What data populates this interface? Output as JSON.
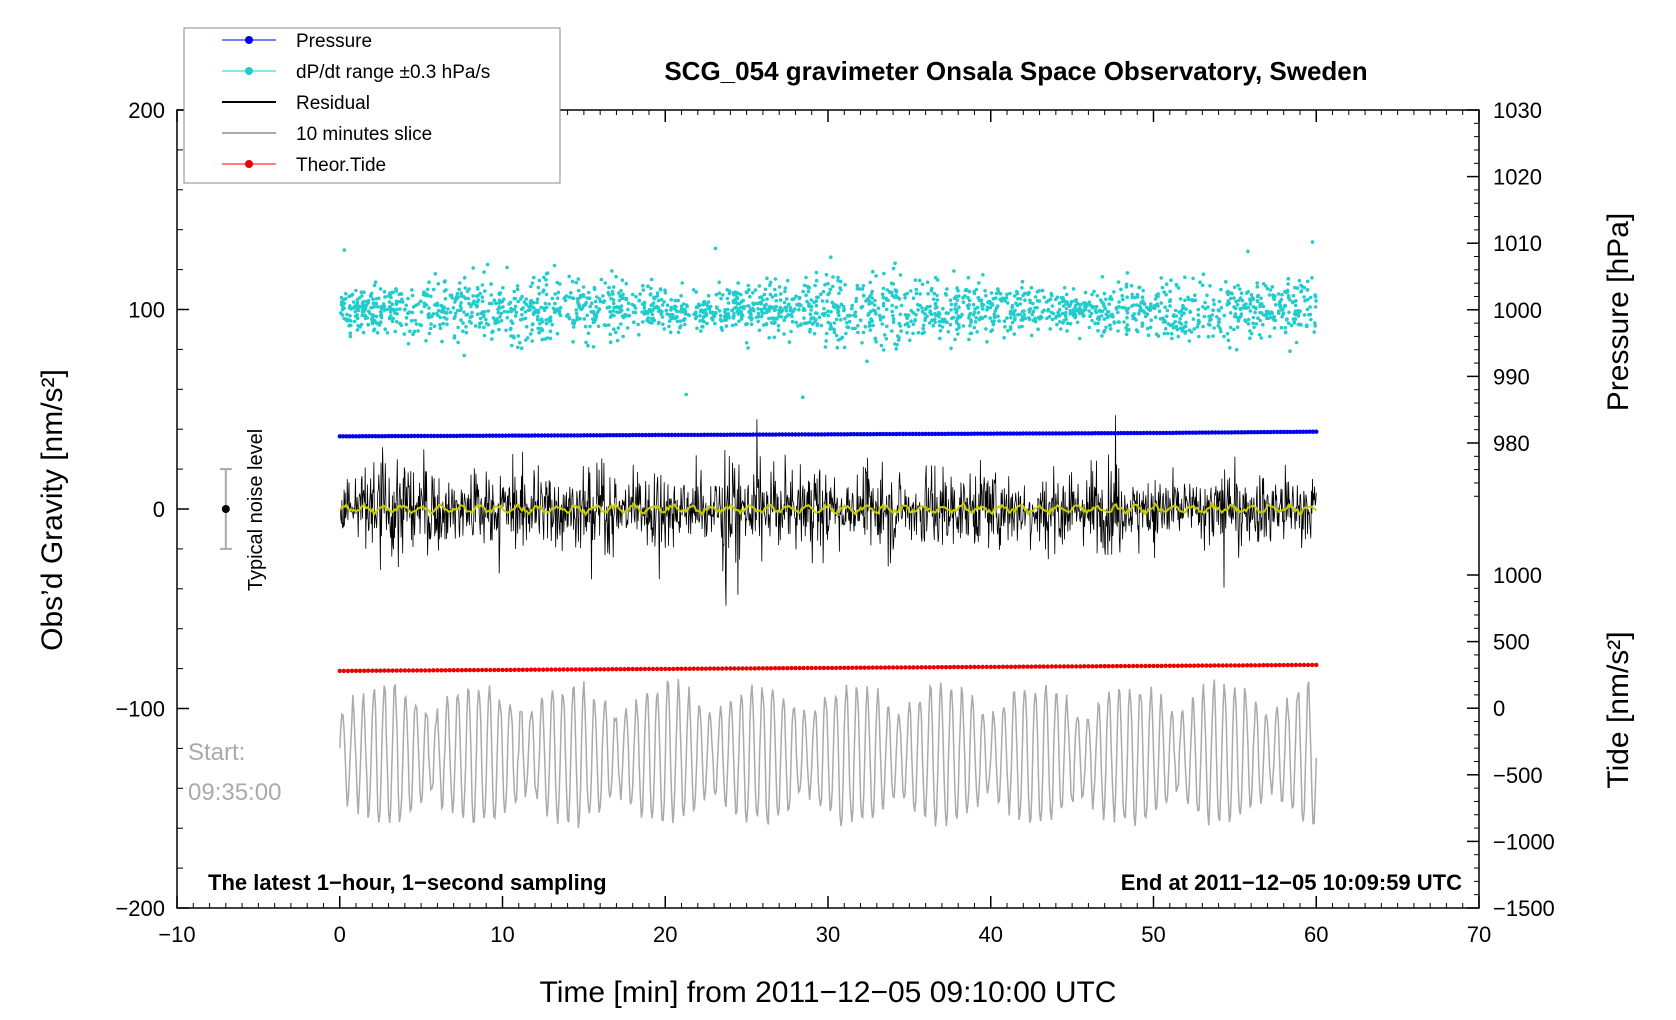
{
  "chart_data": {
    "type": "line",
    "title": "SCG_054 gravimeter Onsala Space Observatory, Sweden",
    "xlabel": "Time [min] from 2011−12−05 09:10:00 UTC",
    "ylabel_left": "Obs’d Gravity [nm/s²]",
    "ylabel_right_pressure": "Pressure [hPa]",
    "ylabel_right_tide": "Tide [nm/s²]",
    "xlim": [
      -10,
      70
    ],
    "ylim": [
      -200,
      200
    ],
    "x_ticks": [
      "−10",
      "0",
      "10",
      "20",
      "30",
      "40",
      "50",
      "60",
      "70"
    ],
    "y_ticks_left": [
      "200",
      "100",
      "0",
      "−100",
      "−200"
    ],
    "pressure_axis": {
      "range": [
        970,
        1030
      ],
      "ticks": [
        "1030",
        "1020",
        "1010",
        "1000",
        "990",
        "980"
      ]
    },
    "tide_axis": {
      "range": [
        -1500,
        1500
      ],
      "ticks": [
        "1000",
        "500",
        "0",
        "−500",
        "−1000",
        "−1500"
      ]
    },
    "legend": [
      {
        "name": "Pressure",
        "color": "#0000ee",
        "style": "line-dot"
      },
      {
        "name": "dP/dt range ±0.3 hPa/s",
        "color": "#22cccc",
        "style": "line-dot"
      },
      {
        "name": "Residual",
        "color": "#000000",
        "style": "line"
      },
      {
        "name": "10 minutes slice",
        "color": "#aaaaaa",
        "style": "line"
      },
      {
        "name": "Theor.Tide",
        "color": "#ee0000",
        "style": "line-dot"
      }
    ],
    "series": [
      {
        "name": "Pressure",
        "axis": "pressure",
        "x": [
          0,
          10,
          20,
          30,
          40,
          50,
          60
        ],
        "values": [
          981.0,
          981.1,
          981.2,
          981.3,
          981.4,
          981.5,
          981.7
        ]
      },
      {
        "name": "dP/dt range ±0.3 hPa/s",
        "axis": "left",
        "center": 100,
        "spread": 20,
        "x_range": [
          0,
          60
        ]
      },
      {
        "name": "Residual",
        "axis": "left",
        "center": 0,
        "amplitude": 35,
        "x_range": [
          0,
          60
        ]
      },
      {
        "name": "Residual smoothed",
        "axis": "left",
        "color": "#cccc00",
        "center": 0,
        "amplitude": 2,
        "x_range": [
          0,
          60
        ]
      },
      {
        "name": "Theor.Tide",
        "axis": "tide",
        "x": [
          0,
          60
        ],
        "values": [
          280,
          325
        ]
      },
      {
        "name": "10 minutes slice",
        "axis": "left",
        "center": -123,
        "amplitude": 35,
        "x_range": [
          0,
          60
        ]
      }
    ],
    "noise_level": {
      "label": "Typical noise level",
      "x": -7,
      "y": 0,
      "range": [
        -20,
        20
      ]
    },
    "annotations": {
      "start_label": "Start:",
      "start_time": "09:35:00",
      "bottom_left": "The latest 1−hour, 1−second sampling",
      "bottom_right": "End at 2011−12−05 10:09:59 UTC"
    },
    "colors": {
      "pressure": "#0000ee",
      "dpdt": "#22cccc",
      "residual": "#000000",
      "residual_smooth": "#cccc00",
      "slice": "#aaaaaa",
      "tide": "#ee0000",
      "noise_bar": "#aaaaaa"
    }
  }
}
